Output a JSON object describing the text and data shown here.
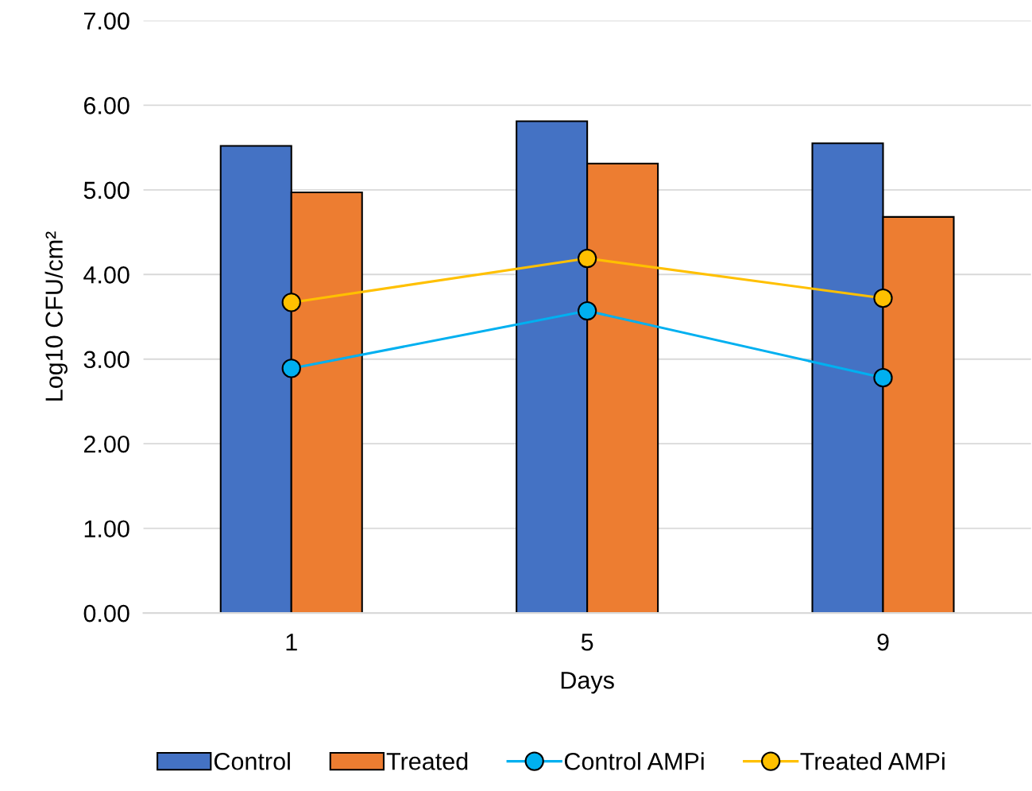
{
  "chart_data": {
    "type": "bar",
    "xlabel": "Days",
    "ylabel": "Log10 CFU/cm²",
    "categories": [
      "1",
      "5",
      "9"
    ],
    "series": [
      {
        "name": "Control",
        "color": "#4472c4",
        "values": [
          5.52,
          5.81,
          5.55
        ]
      },
      {
        "name": "Treated",
        "color": "#ed7d31",
        "values": [
          4.97,
          5.31,
          4.68
        ]
      },
      {
        "name": "Control AMPi",
        "type": "line",
        "color": "#00b0f0",
        "values": [
          2.89,
          3.57,
          2.78
        ]
      },
      {
        "name": "Treated AMPi",
        "type": "line",
        "color": "#ffc000",
        "values": [
          3.67,
          4.19,
          3.72
        ]
      }
    ],
    "ylim": [
      0,
      7
    ],
    "yticks": [
      {
        "value": 0,
        "label": "0.00"
      },
      {
        "value": 1,
        "label": "1.00"
      },
      {
        "value": 2,
        "label": "2.00"
      },
      {
        "value": 3,
        "label": "3.00"
      },
      {
        "value": 4,
        "label": "4.00"
      },
      {
        "value": 5,
        "label": "5.00"
      },
      {
        "value": 6,
        "label": "6.00"
      },
      {
        "value": 7,
        "label": "7.00"
      }
    ],
    "grid": "y",
    "legend": "bottom",
    "marker": "circle",
    "line_style": "solid"
  }
}
